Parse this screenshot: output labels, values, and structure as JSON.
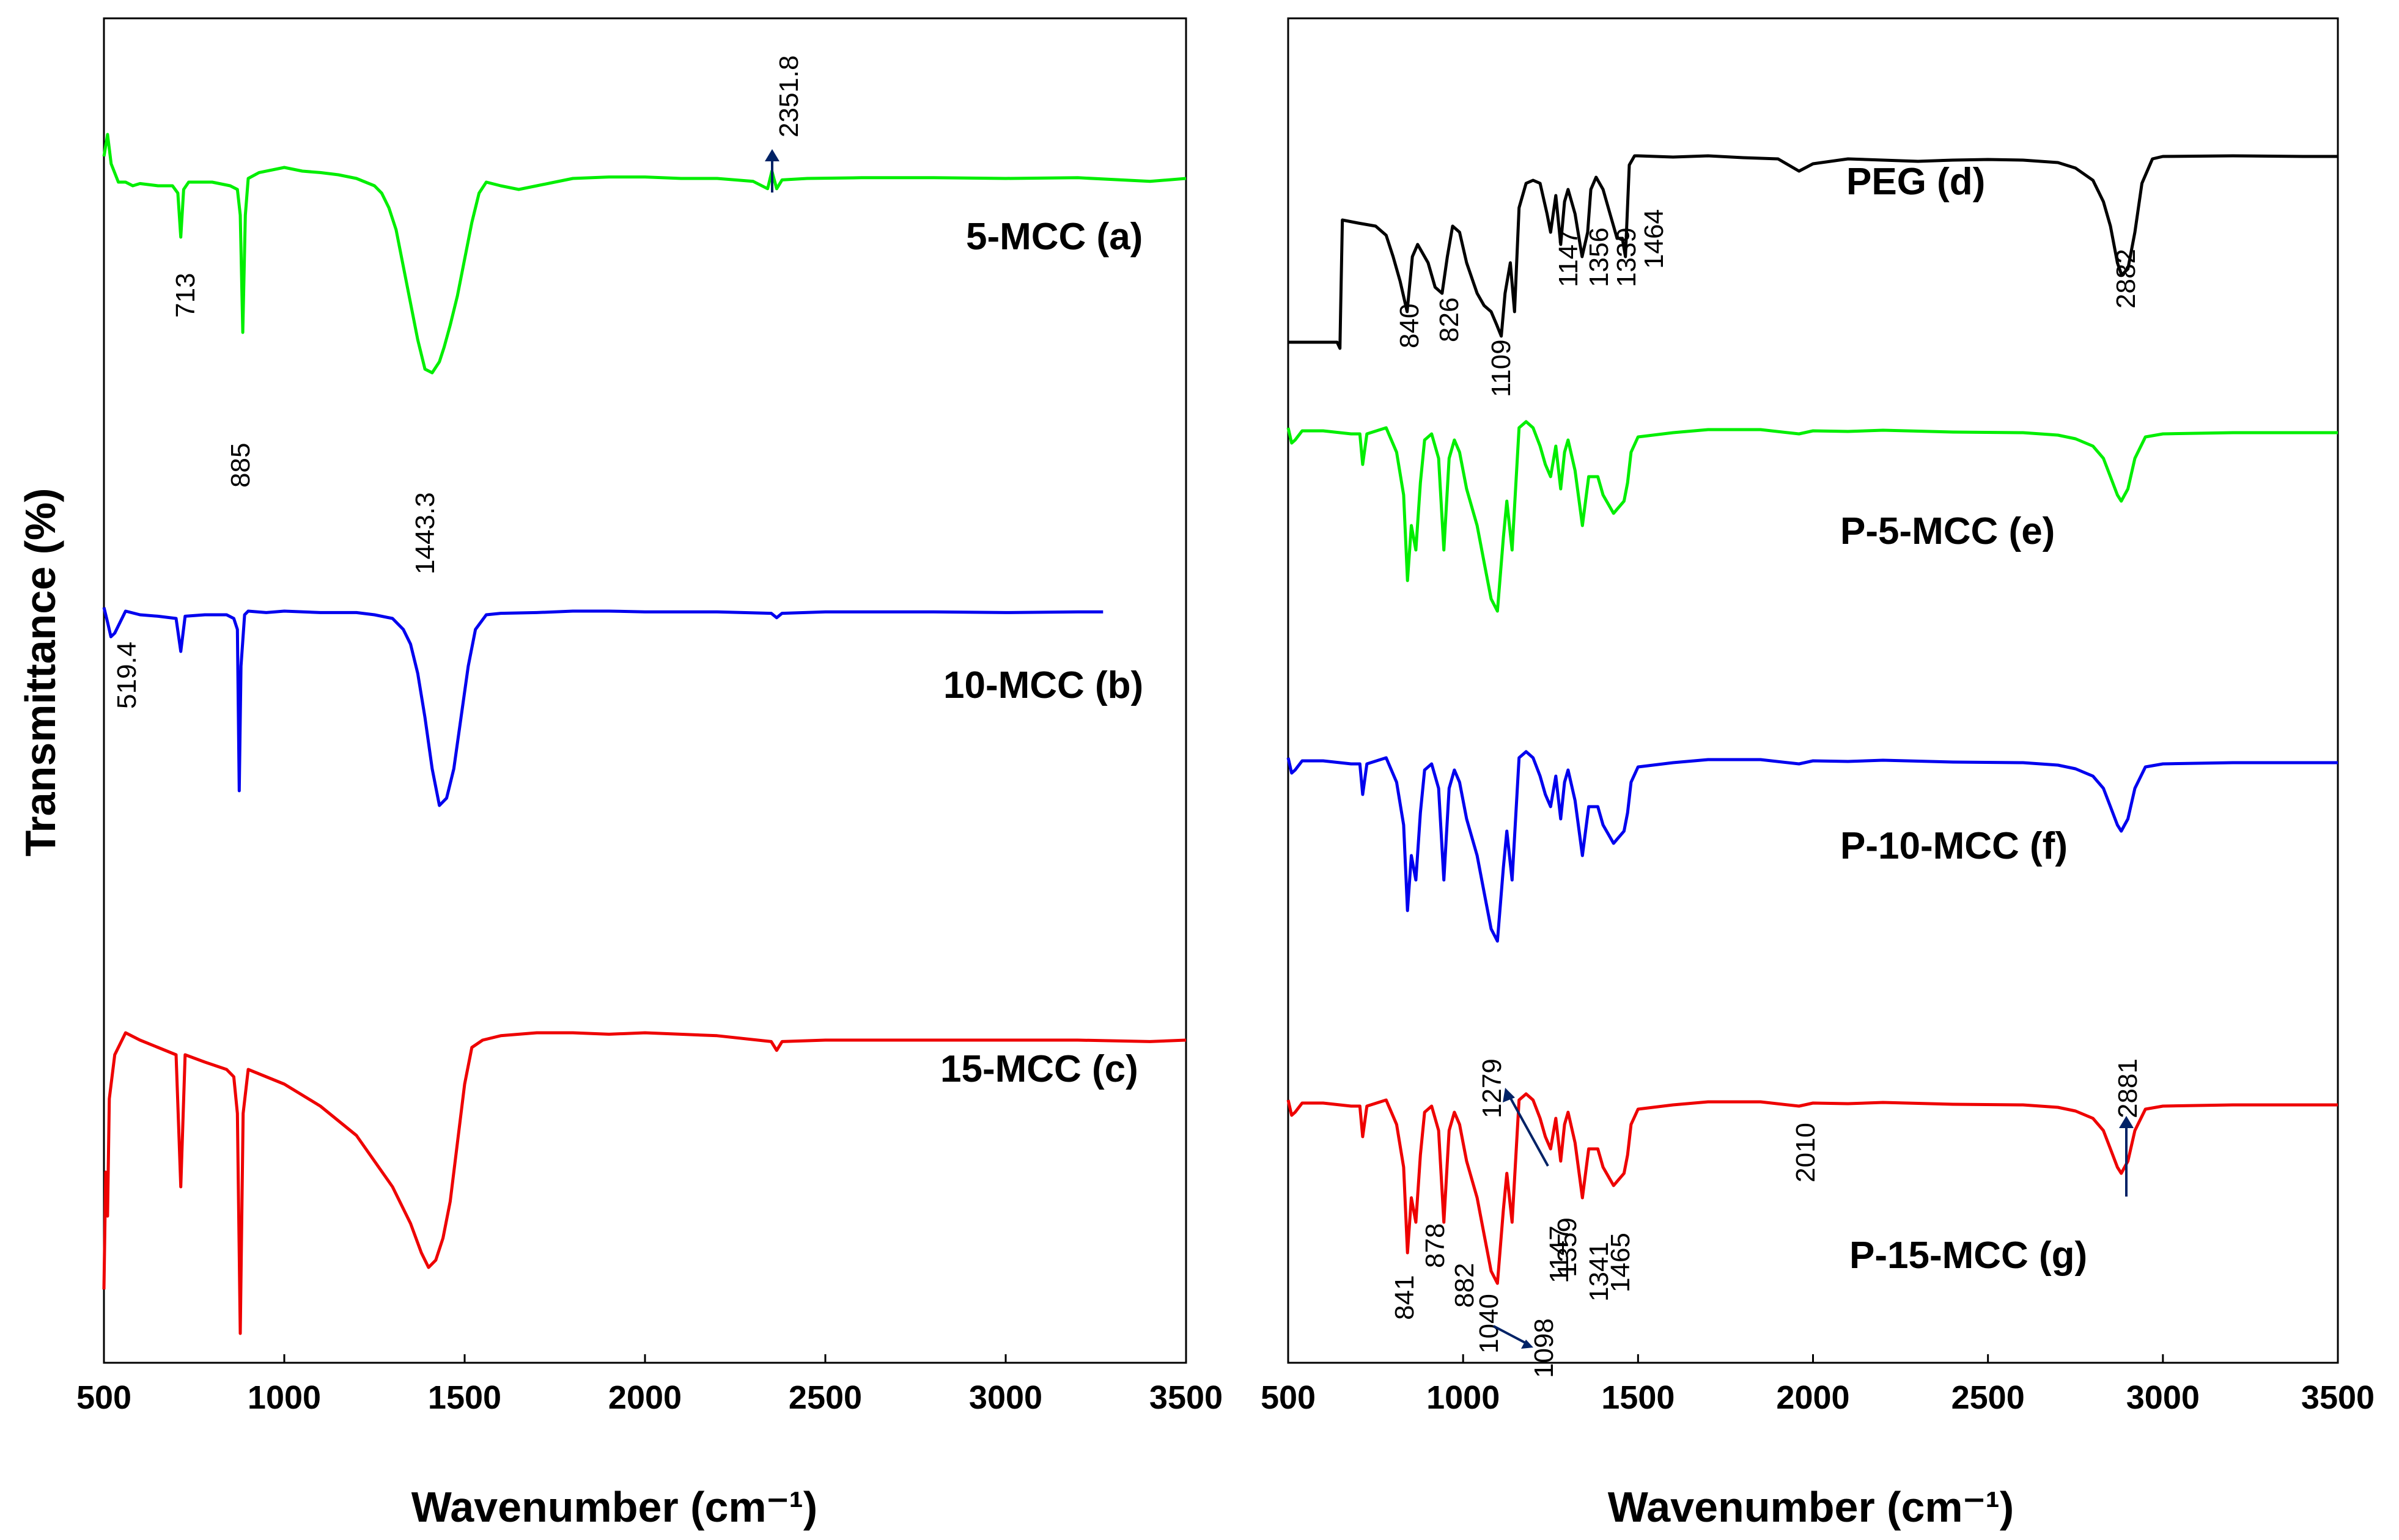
{
  "chart_data": [
    {
      "type": "line",
      "panel": "left",
      "xlabel": "Wavenumber (cm⁻¹)",
      "ylabel": "Transmittance (%)",
      "xlim": [
        500,
        3500
      ],
      "xticks": [
        "500",
        "1000",
        "1500",
        "2000",
        "2500",
        "3000",
        "3500"
      ],
      "series": [
        {
          "name": "5-MCC (a)",
          "color": "#00ee00",
          "x": [
            500,
            510,
            520,
            540,
            560,
            580,
            600,
            650,
            690,
            705,
            713,
            721,
            735,
            800,
            850,
            870,
            878,
            885,
            892,
            900,
            930,
            1000,
            1050,
            1100,
            1150,
            1200,
            1250,
            1270,
            1290,
            1310,
            1330,
            1350,
            1370,
            1390,
            1410,
            1430,
            1443.3,
            1460,
            1480,
            1500,
            1520,
            1540,
            1560,
            1600,
            1650,
            1700,
            1750,
            1800,
            1900,
            2000,
            2100,
            2200,
            2300,
            2340,
            2351.8,
            2365,
            2380,
            2450,
            2600,
            2800,
            3000,
            3200,
            3400,
            3500
          ],
          "y": [
            87,
            90,
            86,
            83.5,
            83.5,
            83,
            83.3,
            83,
            83,
            82,
            76,
            82.5,
            83.5,
            83.5,
            83,
            82.5,
            79,
            63,
            79,
            84,
            84.8,
            85.5,
            85,
            84.8,
            84.5,
            84,
            83,
            82,
            80,
            77,
            72,
            67,
            62,
            58,
            57.5,
            59,
            61,
            64,
            68,
            73,
            78,
            82,
            83.5,
            83,
            82.5,
            83,
            83.5,
            84,
            84.2,
            84.2,
            84,
            84,
            83.6,
            82.6,
            85,
            82.6,
            83.8,
            84,
            84.1,
            84.1,
            84,
            84.1,
            83.6,
            84
          ]
        },
        {
          "name": "10-MCC (b)",
          "color": "#0000ee",
          "x": [
            500,
            510,
            519.4,
            530,
            560,
            600,
            650,
            700,
            713,
            725,
            780,
            840,
            860,
            870,
            875,
            880,
            890,
            900,
            950,
            1000,
            1100,
            1200,
            1250,
            1300,
            1330,
            1350,
            1370,
            1390,
            1410,
            1430,
            1450,
            1470,
            1490,
            1510,
            1530,
            1560,
            1600,
            1700,
            1800,
            1900,
            2000,
            2200,
            2350,
            2365,
            2380,
            2500,
            2800,
            3000,
            3200,
            3270
          ],
          "y": [
            53,
            51,
            49,
            49.5,
            52.5,
            52,
            51.8,
            51.5,
            47,
            51.8,
            52,
            52,
            51.5,
            50,
            28,
            45,
            52,
            52.5,
            52.3,
            52.5,
            52.3,
            52.3,
            52,
            51.5,
            50,
            48,
            44,
            38,
            31,
            26,
            27,
            31,
            38,
            45,
            50,
            52,
            52.2,
            52.3,
            52.5,
            52.5,
            52.4,
            52.4,
            52.2,
            51.6,
            52.2,
            52.4,
            52.4,
            52.3,
            52.4,
            52.4
          ]
        },
        {
          "name": "15-MCC (c)",
          "color": "#ee0000",
          "x": [
            500,
            505,
            510,
            515,
            530,
            560,
            600,
            650,
            700,
            713,
            725,
            780,
            840,
            860,
            870,
            878,
            886,
            900,
            950,
            1000,
            1100,
            1200,
            1300,
            1350,
            1380,
            1400,
            1420,
            1440,
            1460,
            1480,
            1500,
            1520,
            1550,
            1600,
            1700,
            1800,
            1900,
            2000,
            2200,
            2350,
            2365,
            2380,
            2500,
            2800,
            3000,
            3200,
            3400,
            3500
          ],
          "y": [
            5,
            13,
            10,
            18,
            21,
            22.5,
            22,
            21.5,
            21,
            12,
            21,
            20.5,
            20,
            19.5,
            17,
            2,
            17,
            20,
            19.5,
            19,
            17.5,
            15.5,
            12,
            9.5,
            7.5,
            6.5,
            7,
            8.5,
            11,
            15,
            19,
            21.5,
            22,
            22.3,
            22.5,
            22.5,
            22.4,
            22.5,
            22.3,
            21.9,
            21.3,
            21.9,
            22,
            22,
            22,
            22,
            21.9,
            22
          ]
        }
      ],
      "annotations": [
        {
          "text": "713",
          "x": 713
        },
        {
          "text": "885",
          "x": 885
        },
        {
          "text": "1443.3",
          "x": 1443.3
        },
        {
          "text": "2351.8",
          "x": 2351.8
        },
        {
          "text": "519.4",
          "x": 519.4
        }
      ]
    },
    {
      "type": "line",
      "panel": "right",
      "xlabel": "Wavenumber (cm⁻¹)",
      "xlim": [
        500,
        3500
      ],
      "xticks": [
        "500",
        "1000",
        "1500",
        "2000",
        "2500",
        "3000",
        "3500"
      ],
      "series": [
        {
          "name": "PEG (d)",
          "color": "#000000",
          "x": [
            500,
            640,
            648,
            650,
            655,
            700,
            750,
            780,
            800,
            820,
            840,
            855,
            870,
            900,
            920,
            940,
            955,
            970,
            990,
            1010,
            1040,
            1060,
            1080,
            1095,
            1109,
            1120,
            1135,
            1147,
            1160,
            1180,
            1200,
            1220,
            1240,
            1250,
            1265,
            1279,
            1290,
            1300,
            1320,
            1340,
            1356,
            1365,
            1380,
            1400,
            1420,
            1440,
            1455,
            1464,
            1475,
            1490,
            1500,
            1600,
            1700,
            1800,
            1900,
            1960,
            2000,
            2100,
            2200,
            2300,
            2400,
            2500,
            2600,
            2700,
            2750,
            2800,
            2830,
            2850,
            2870,
            2882,
            2900,
            2920,
            2940,
            2970,
            3000,
            3200,
            3400,
            3500
          ],
          "y": [
            91,
            91,
            90,
            96,
            111,
            110.5,
            110,
            108.5,
            105,
            101,
            96,
            105,
            107,
            104,
            100,
            99,
            105,
            110,
            109,
            104,
            99,
            97,
            96,
            94,
            92,
            99,
            104,
            96,
            113,
            117,
            117.5,
            117,
            112,
            109,
            115,
            107,
            114,
            116,
            112,
            105,
            109,
            116,
            118,
            116,
            112,
            108,
            108,
            105,
            120,
            121.5,
            121.5,
            121.3,
            121.5,
            121.2,
            121,
            119,
            120.2,
            121,
            120.8,
            120.6,
            120.8,
            120.9,
            120.8,
            120.4,
            119.5,
            117.5,
            114,
            110,
            104,
            102,
            103,
            109,
            117,
            121,
            121.4,
            121.5,
            121.4,
            121.4
          ]
        },
        {
          "name": "P-5-MCC (e)",
          "color": "#00ee00",
          "x": [
            500,
            510,
            520,
            540,
            600,
            680,
            705,
            713,
            725,
            780,
            810,
            830,
            841,
            852,
            865,
            878,
            890,
            910,
            930,
            945,
            960,
            975,
            990,
            1010,
            1040,
            1060,
            1080,
            1098,
            1115,
            1125,
            1140,
            1147,
            1160,
            1180,
            1200,
            1220,
            1235,
            1250,
            1265,
            1279,
            1290,
            1300,
            1320,
            1341,
            1359,
            1370,
            1385,
            1400,
            1430,
            1460,
            1470,
            1480,
            1500,
            1600,
            1700,
            1850,
            1960,
            2000,
            2100,
            2200,
            2400,
            2600,
            2700,
            2750,
            2800,
            2830,
            2850,
            2870,
            2881,
            2900,
            2920,
            2950,
            3000,
            3200,
            3400,
            3500
          ],
          "y": [
            82,
            79.5,
            80,
            81.5,
            81.5,
            81,
            81,
            76,
            81,
            82,
            78,
            71,
            57,
            66,
            62,
            73,
            80,
            81,
            77,
            62,
            77,
            80,
            78,
            72,
            66,
            60,
            54,
            52,
            64,
            70,
            62,
            69,
            82,
            83,
            82,
            79,
            76,
            74,
            79,
            72,
            78,
            80,
            75,
            66,
            74,
            74,
            74,
            71,
            68,
            70,
            73,
            78,
            80.5,
            81.2,
            81.7,
            81.7,
            81,
            81.5,
            81.4,
            81.6,
            81.3,
            81.2,
            80.8,
            80.2,
            79,
            77,
            74,
            71,
            70,
            72,
            77,
            80.5,
            81,
            81.2,
            81.2,
            81.2
          ]
        },
        {
          "name": "P-10-MCC (f)",
          "color": "#0000ee",
          "x": [
            500,
            510,
            520,
            540,
            600,
            680,
            705,
            713,
            725,
            780,
            810,
            830,
            841,
            852,
            865,
            878,
            890,
            910,
            930,
            945,
            960,
            975,
            990,
            1010,
            1040,
            1060,
            1080,
            1098,
            1115,
            1125,
            1140,
            1147,
            1160,
            1180,
            1200,
            1220,
            1235,
            1250,
            1265,
            1279,
            1290,
            1300,
            1320,
            1341,
            1359,
            1370,
            1385,
            1400,
            1430,
            1460,
            1470,
            1480,
            1500,
            1600,
            1700,
            1850,
            1960,
            2000,
            2100,
            2200,
            2400,
            2600,
            2700,
            2750,
            2800,
            2830,
            2850,
            2870,
            2881,
            2900,
            2920,
            2950,
            3000,
            3200,
            3400,
            3500
          ],
          "y": [
            62,
            59.5,
            60,
            61.5,
            61.5,
            61,
            61,
            56,
            61,
            62,
            58,
            51,
            37,
            46,
            42,
            53,
            60,
            61,
            57,
            42,
            57,
            60,
            58,
            52,
            46,
            40,
            34,
            32,
            44,
            50,
            42,
            49,
            62,
            63,
            62,
            59,
            56,
            54,
            59,
            52,
            58,
            60,
            55,
            46,
            54,
            54,
            54,
            51,
            48,
            50,
            53,
            58,
            60.5,
            61.2,
            61.7,
            61.7,
            61,
            61.5,
            61.4,
            61.6,
            61.3,
            61.2,
            60.8,
            60.2,
            59,
            57,
            54,
            51,
            50,
            52,
            57,
            60.5,
            61,
            61.2,
            61.2,
            61.2
          ]
        },
        {
          "name": "P-15-MCC (g)",
          "color": "#ee0000",
          "x": [
            500,
            510,
            520,
            540,
            600,
            680,
            705,
            713,
            725,
            780,
            810,
            830,
            841,
            852,
            865,
            878,
            890,
            910,
            930,
            945,
            960,
            975,
            990,
            1010,
            1040,
            1060,
            1080,
            1098,
            1115,
            1125,
            1140,
            1147,
            1160,
            1180,
            1200,
            1220,
            1235,
            1250,
            1265,
            1279,
            1290,
            1300,
            1320,
            1341,
            1359,
            1370,
            1385,
            1400,
            1430,
            1460,
            1470,
            1480,
            1500,
            1600,
            1700,
            1850,
            1960,
            2000,
            2100,
            2200,
            2400,
            2600,
            2700,
            2750,
            2800,
            2830,
            2850,
            2870,
            2881,
            2900,
            2920,
            2950,
            3000,
            3200,
            3400,
            3500
          ],
          "y": [
            38,
            35.5,
            36,
            37.5,
            37.5,
            37,
            37,
            32,
            37,
            38,
            34,
            27,
            13,
            22,
            18,
            29,
            36,
            37,
            33,
            18,
            33,
            36,
            34,
            28,
            22,
            16,
            10,
            8,
            20,
            26,
            18,
            25,
            38,
            39,
            38,
            35,
            32,
            30,
            35,
            28,
            34,
            36,
            31,
            22,
            30,
            30,
            30,
            27,
            24,
            26,
            29,
            34,
            36.5,
            37.2,
            37.7,
            37.7,
            37,
            37.5,
            37.4,
            37.6,
            37.3,
            37.2,
            36.8,
            36.2,
            35,
            33,
            30,
            27,
            26,
            28,
            33,
            36.5,
            37,
            37.2,
            37.2,
            37.2
          ]
        }
      ],
      "annotations": [
        {
          "text": "840",
          "x": 840
        },
        {
          "text": "826",
          "x": 826
        },
        {
          "text": "1109",
          "x": 1109
        },
        {
          "text": "1147",
          "x": 1147
        },
        {
          "text": "1356",
          "x": 1356
        },
        {
          "text": "1339",
          "x": 1339
        },
        {
          "text": "1464",
          "x": 1464
        },
        {
          "text": "2882",
          "x": 2882
        },
        {
          "text": "1279",
          "x": 1279
        },
        {
          "text": "2010",
          "x": 2010
        },
        {
          "text": "2881",
          "x": 2881
        },
        {
          "text": "841",
          "x": 841
        },
        {
          "text": "878",
          "x": 878
        },
        {
          "text": "882",
          "x": 882
        },
        {
          "text": "1040",
          "x": 1040
        },
        {
          "text": "1098",
          "x": 1098
        },
        {
          "text": "1147",
          "x": 1147
        },
        {
          "text": "1359",
          "x": 1359
        },
        {
          "text": "1341",
          "x": 1341
        },
        {
          "text": "1465",
          "x": 1465
        }
      ]
    }
  ]
}
